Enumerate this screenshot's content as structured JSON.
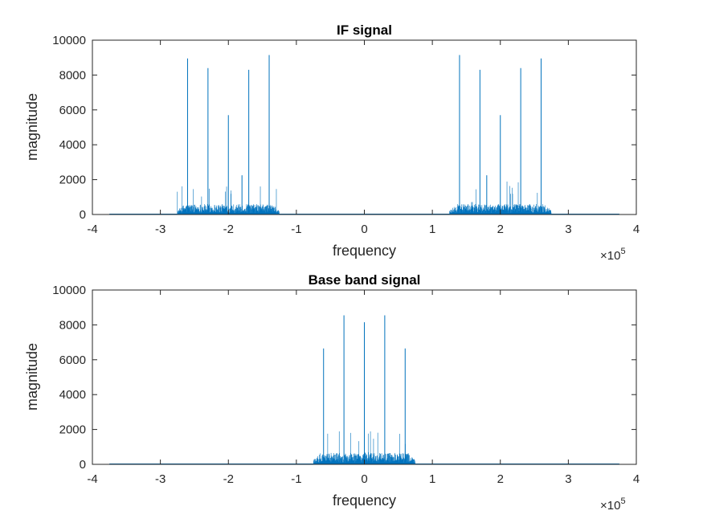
{
  "chart_data": [
    {
      "type": "line",
      "title": "IF signal",
      "xlabel": "frequency",
      "ylabel": "magnitude",
      "x_exponent_label": "×10",
      "x_exponent_power": "5",
      "xlim": [
        -4,
        4
      ],
      "ylim": [
        0,
        10000
      ],
      "x_ticks": [
        -4,
        -3,
        -2,
        -1,
        0,
        1,
        2,
        3,
        4
      ],
      "x_tick_labels": [
        "-4",
        "-3",
        "-2",
        "-1",
        "0",
        "1",
        "2",
        "3",
        "4"
      ],
      "y_ticks": [
        0,
        2000,
        4000,
        6000,
        8000,
        10000
      ],
      "y_tick_labels": [
        "0",
        "2000",
        "4000",
        "6000",
        "8000",
        "10000"
      ],
      "grid": false,
      "series_color": "#0072BD",
      "signal_extent": [
        -3.75,
        3.75
      ],
      "noise_bands": [
        {
          "from": -2.75,
          "to": -1.25,
          "typical": 600,
          "max": 1900
        },
        {
          "from": 1.25,
          "to": 2.75,
          "typical": 600,
          "max": 1900
        }
      ],
      "peaks": [
        {
          "x": -2.6,
          "y": 8950
        },
        {
          "x": -2.3,
          "y": 8400
        },
        {
          "x": -2.0,
          "y": 5700
        },
        {
          "x": -1.8,
          "y": 2250
        },
        {
          "x": -1.7,
          "y": 8300
        },
        {
          "x": -1.4,
          "y": 9150
        },
        {
          "x": 1.4,
          "y": 9150
        },
        {
          "x": 1.7,
          "y": 8300
        },
        {
          "x": 1.8,
          "y": 2250
        },
        {
          "x": 2.0,
          "y": 5700
        },
        {
          "x": 2.3,
          "y": 8400
        },
        {
          "x": 2.6,
          "y": 8950
        }
      ]
    },
    {
      "type": "line",
      "title": "Base band signal",
      "xlabel": "frequency",
      "ylabel": "magnitude",
      "x_exponent_label": "×10",
      "x_exponent_power": "5",
      "xlim": [
        -4,
        4
      ],
      "ylim": [
        0,
        10000
      ],
      "x_ticks": [
        -4,
        -3,
        -2,
        -1,
        0,
        1,
        2,
        3,
        4
      ],
      "x_tick_labels": [
        "-4",
        "-3",
        "-2",
        "-1",
        "0",
        "1",
        "2",
        "3",
        "4"
      ],
      "y_ticks": [
        0,
        2000,
        4000,
        6000,
        8000,
        10000
      ],
      "y_tick_labels": [
        "0",
        "2000",
        "4000",
        "6000",
        "8000",
        "10000"
      ],
      "grid": false,
      "series_color": "#0072BD",
      "signal_extent": [
        -3.75,
        3.75
      ],
      "noise_bands": [
        {
          "from": -0.75,
          "to": 0.75,
          "typical": 650,
          "max": 1950
        }
      ],
      "peaks": [
        {
          "x": -0.6,
          "y": 6650
        },
        {
          "x": -0.3,
          "y": 8550
        },
        {
          "x": 0.0,
          "y": 8150
        },
        {
          "x": 0.3,
          "y": 8550
        },
        {
          "x": 0.6,
          "y": 6650
        }
      ]
    }
  ]
}
